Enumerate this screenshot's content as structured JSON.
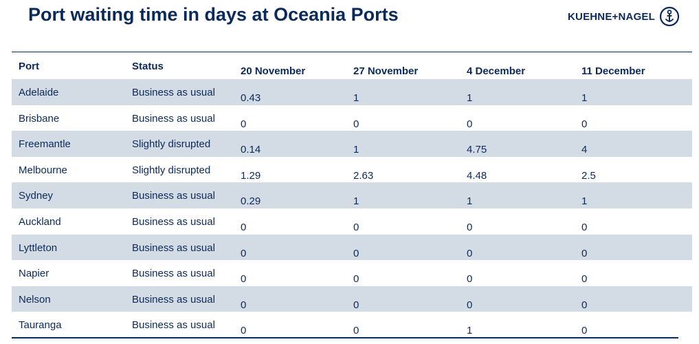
{
  "title": "Port waiting time in days at Oceania Ports",
  "logo": {
    "text": "KUEHNE+NAGEL",
    "icon": "anchor-icon"
  },
  "table": {
    "columns": [
      "Port",
      "Status",
      "20 November",
      "27 November",
      "4 December",
      "11 December"
    ],
    "rows": [
      {
        "port": "Adelaide",
        "status": "Business as usual",
        "values": [
          "0.43",
          "1",
          "1",
          "1"
        ]
      },
      {
        "port": "Brisbane",
        "status": "Business as usual",
        "values": [
          "0",
          "0",
          "0",
          "0"
        ]
      },
      {
        "port": "Freemantle",
        "status": "Slightly disrupted",
        "values": [
          "0.14",
          "1",
          "4.75",
          "4"
        ]
      },
      {
        "port": "Melbourne",
        "status": "Slightly disrupted",
        "values": [
          "1.29",
          "2.63",
          "4.48",
          "2.5"
        ]
      },
      {
        "port": "Sydney",
        "status": "Business as usual",
        "values": [
          "0.29",
          "1",
          "1",
          "1"
        ]
      },
      {
        "port": "Auckland",
        "status": "Business as usual",
        "values": [
          "0",
          "0",
          "0",
          "0"
        ]
      },
      {
        "port": "Lyttleton",
        "status": "Business as usual",
        "values": [
          "0",
          "0",
          "0",
          "0"
        ]
      },
      {
        "port": "Napier",
        "status": "Business as usual",
        "values": [
          "0",
          "0",
          "0",
          "0"
        ]
      },
      {
        "port": "Nelson",
        "status": "Business as usual",
        "values": [
          "0",
          "0",
          "0",
          "0"
        ]
      },
      {
        "port": "Tauranga",
        "status": "Business as usual",
        "values": [
          "0",
          "0",
          "1",
          "0"
        ]
      }
    ]
  },
  "colors": {
    "text": "#0b2a5c",
    "shaded_row": "#d3dbe4",
    "background": "#ffffff"
  }
}
